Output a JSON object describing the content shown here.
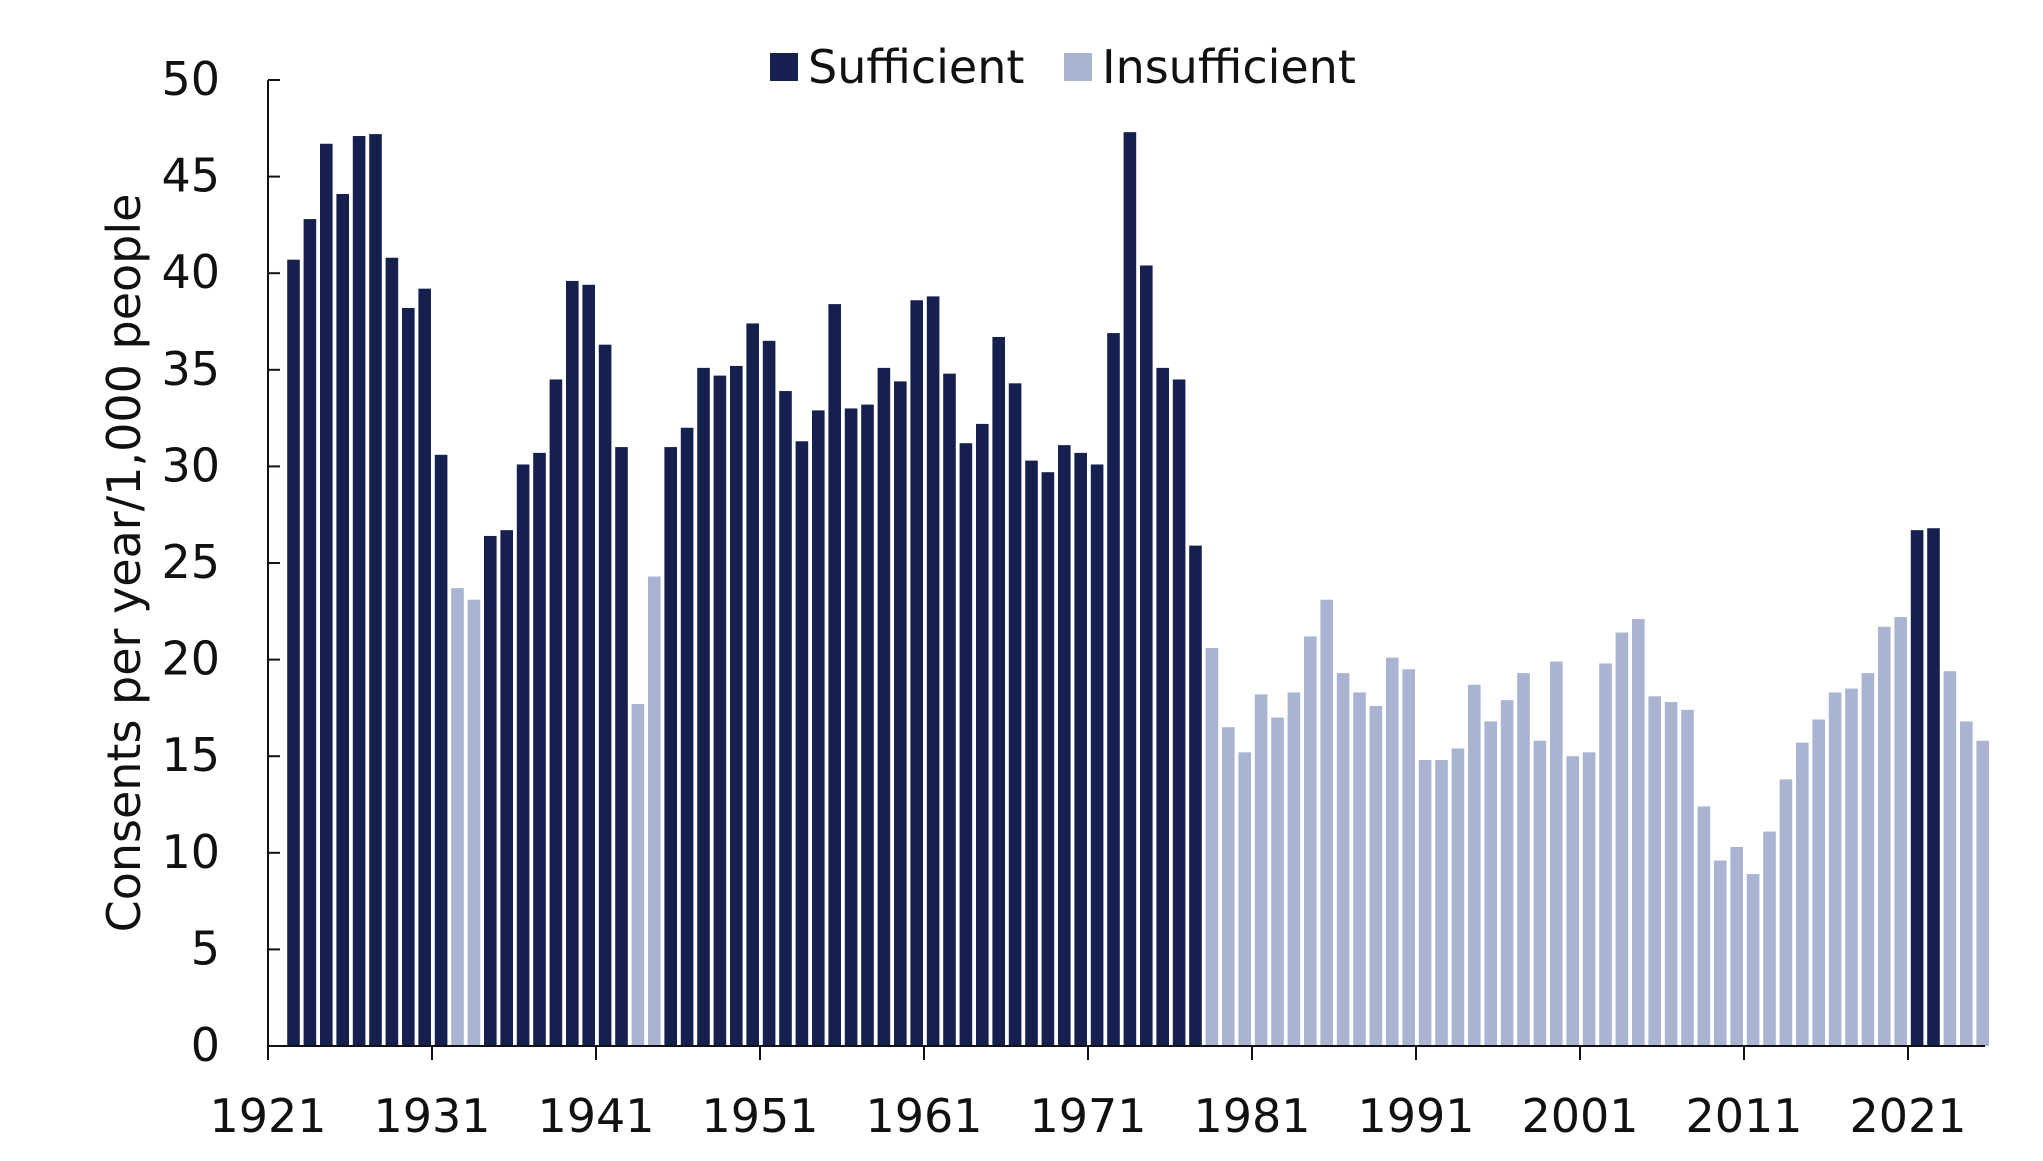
{
  "chart_data": {
    "type": "bar",
    "title": "",
    "xlabel": "",
    "ylabel": "Consents per year/1,000 people",
    "ylim": [
      0,
      50
    ],
    "yticks": [
      "0",
      "5",
      "10",
      "15",
      "20",
      "25",
      "30",
      "35",
      "40",
      "45",
      "50"
    ],
    "x_start_year": 1922,
    "xtick_labels": [
      "1921",
      "1931",
      "1941",
      "1951",
      "1961",
      "1971",
      "1981",
      "1991",
      "2001",
      "2011",
      "2021"
    ],
    "grid": false,
    "legend_position": "top-center",
    "colors": {
      "Sufficient": "#15204f",
      "Insufficient": "#a9b4d3"
    },
    "series": [
      {
        "name": "Sufficient",
        "color": "#15204f"
      },
      {
        "name": "Insufficient",
        "color": "#a9b4d3"
      }
    ],
    "values": [
      40.7,
      42.8,
      46.7,
      44.1,
      47.1,
      47.2,
      40.8,
      38.2,
      39.2,
      30.6,
      23.7,
      23.1,
      26.4,
      26.7,
      30.1,
      30.7,
      34.5,
      39.6,
      39.4,
      36.3,
      31.0,
      17.7,
      24.3,
      31.0,
      32.0,
      35.1,
      34.7,
      35.2,
      37.4,
      36.5,
      33.9,
      31.3,
      32.9,
      38.4,
      33.0,
      33.2,
      35.1,
      34.4,
      38.6,
      38.8,
      34.8,
      31.2,
      32.2,
      36.7,
      34.3,
      30.3,
      29.7,
      31.1,
      30.7,
      30.1,
      36.9,
      47.3,
      40.4,
      35.1,
      34.5,
      25.9,
      20.6,
      16.5,
      15.2,
      18.2,
      17.0,
      18.3,
      21.2,
      23.1,
      19.3,
      18.3,
      17.6,
      20.1,
      19.5,
      14.8,
      14.8,
      15.4,
      18.7,
      16.8,
      17.9,
      19.3,
      15.8,
      19.9,
      15.0,
      15.2,
      19.8,
      21.4,
      22.1,
      18.1,
      17.8,
      17.4,
      12.4,
      9.6,
      10.3,
      8.9,
      11.1,
      13.8,
      15.7,
      16.9,
      18.3,
      18.5,
      19.3,
      21.7,
      22.2,
      26.7,
      26.8,
      19.4,
      16.8,
      15.8
    ],
    "status": [
      "Sufficient",
      "Sufficient",
      "Sufficient",
      "Sufficient",
      "Sufficient",
      "Sufficient",
      "Sufficient",
      "Sufficient",
      "Sufficient",
      "Sufficient",
      "Insufficient",
      "Insufficient",
      "Sufficient",
      "Sufficient",
      "Sufficient",
      "Sufficient",
      "Sufficient",
      "Sufficient",
      "Sufficient",
      "Sufficient",
      "Sufficient",
      "Insufficient",
      "Insufficient",
      "Sufficient",
      "Sufficient",
      "Sufficient",
      "Sufficient",
      "Sufficient",
      "Sufficient",
      "Sufficient",
      "Sufficient",
      "Sufficient",
      "Sufficient",
      "Sufficient",
      "Sufficient",
      "Sufficient",
      "Sufficient",
      "Sufficient",
      "Sufficient",
      "Sufficient",
      "Sufficient",
      "Sufficient",
      "Sufficient",
      "Sufficient",
      "Sufficient",
      "Sufficient",
      "Sufficient",
      "Sufficient",
      "Sufficient",
      "Sufficient",
      "Sufficient",
      "Sufficient",
      "Sufficient",
      "Sufficient",
      "Sufficient",
      "Sufficient",
      "Insufficient",
      "Insufficient",
      "Insufficient",
      "Insufficient",
      "Insufficient",
      "Insufficient",
      "Insufficient",
      "Insufficient",
      "Insufficient",
      "Insufficient",
      "Insufficient",
      "Insufficient",
      "Insufficient",
      "Insufficient",
      "Insufficient",
      "Insufficient",
      "Insufficient",
      "Insufficient",
      "Insufficient",
      "Insufficient",
      "Insufficient",
      "Insufficient",
      "Insufficient",
      "Insufficient",
      "Insufficient",
      "Insufficient",
      "Insufficient",
      "Insufficient",
      "Insufficient",
      "Insufficient",
      "Insufficient",
      "Insufficient",
      "Insufficient",
      "Insufficient",
      "Insufficient",
      "Insufficient",
      "Insufficient",
      "Insufficient",
      "Insufficient",
      "Insufficient",
      "Insufficient",
      "Insufficient",
      "Insufficient",
      "Sufficient",
      "Sufficient",
      "Insufficient",
      "Insufficient",
      "Insufficient"
    ]
  }
}
